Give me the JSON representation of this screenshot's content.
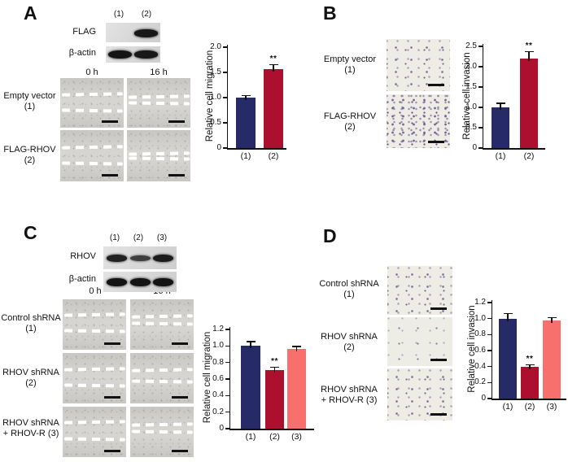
{
  "figure": {
    "panels": [
      {
        "id": "A",
        "letter": "A",
        "blot": {
          "lane_labels": [
            "(1)",
            "(2)"
          ],
          "rows": [
            {
              "label": "FLAG",
              "bands": [
                0,
                0.95
              ]
            },
            {
              "label": "β-actin",
              "bands": [
                1,
                0.95
              ]
            }
          ]
        },
        "wound": {
          "timepoints": [
            "0 h",
            "16 h"
          ],
          "rows": [
            {
              "line1": "Empty vector",
              "line2": "(1)"
            },
            {
              "line1": "FLAG-RHOV",
              "line2": "(2)"
            }
          ]
        }
      },
      {
        "id": "B",
        "letter": "B",
        "invasion": {
          "rows": [
            {
              "line1": "Empty vector",
              "line2": "(1)",
              "density": "medium"
            },
            {
              "line1": "FLAG-RHOV",
              "line2": "(2)",
              "density": "high"
            }
          ]
        }
      },
      {
        "id": "C",
        "letter": "C",
        "blot": {
          "lane_labels": [
            "(1)",
            "(2)",
            "(3)"
          ],
          "rows": [
            {
              "label": "RHOV",
              "bands": [
                0.85,
                0.5,
                0.9
              ]
            },
            {
              "label": "β-actin",
              "bands": [
                1,
                1,
                1
              ]
            }
          ]
        },
        "wound": {
          "timepoints": [
            "0 h",
            "16 h"
          ],
          "rows": [
            {
              "line1": "Control shRNA",
              "line2": "(1)"
            },
            {
              "line1": "RHOV shRNA",
              "line2": "(2)"
            },
            {
              "line1": "RHOV shRNA",
              "line2": "+ RHOV-R (3)"
            }
          ]
        }
      },
      {
        "id": "D",
        "letter": "D",
        "invasion": {
          "rows": [
            {
              "line1": "Control shRNA",
              "line2": "(1)",
              "density": "medium"
            },
            {
              "line1": "RHOV shRNA",
              "line2": "(2)",
              "density": "low"
            },
            {
              "line1": "RHOV shRNA",
              "line2": "+ RHOV-R (3)",
              "density": "medium"
            }
          ]
        }
      }
    ]
  },
  "chart_data": [
    {
      "panel": "A",
      "type": "bar",
      "ylabel": "Relative cell migration",
      "categories": [
        "(1)",
        "(2)"
      ],
      "values": [
        1.0,
        1.57
      ],
      "errors": [
        0.04,
        0.08
      ],
      "sig": [
        "",
        "**"
      ],
      "ylim": [
        0,
        2.0
      ],
      "yticks": [
        "0",
        "0.5",
        "1.0",
        "1.5",
        "2.0"
      ],
      "colors": [
        "#262a66",
        "#ad0f2e"
      ]
    },
    {
      "panel": "B",
      "type": "bar",
      "ylabel": "Relative cell invasion",
      "categories": [
        "(1)",
        "(2)"
      ],
      "values": [
        1.0,
        2.2
      ],
      "errors": [
        0.1,
        0.17
      ],
      "sig": [
        "",
        "**"
      ],
      "ylim": [
        0,
        2.5
      ],
      "yticks": [
        "0",
        "0.5",
        "1.0",
        "1.5",
        "2.0",
        "2.5"
      ],
      "colors": [
        "#262a66",
        "#ad0f2e"
      ]
    },
    {
      "panel": "C",
      "type": "bar",
      "ylabel": "Relative cell migration",
      "categories": [
        "(1)",
        "(2)",
        "(3)"
      ],
      "values": [
        1.0,
        0.71,
        0.96
      ],
      "errors": [
        0.05,
        0.03,
        0.03
      ],
      "sig": [
        "",
        "**",
        ""
      ],
      "ylim": [
        0,
        1.2
      ],
      "yticks": [
        "0",
        "0.2",
        "0.4",
        "0.6",
        "0.8",
        "1.0",
        "1.2"
      ],
      "colors": [
        "#262a66",
        "#ad0f2e",
        "#f8706d"
      ]
    },
    {
      "panel": "D",
      "type": "bar",
      "ylabel": "Relative cell invasion",
      "categories": [
        "(1)",
        "(2)",
        "(3)"
      ],
      "values": [
        1.0,
        0.4,
        0.98
      ],
      "errors": [
        0.06,
        0.02,
        0.03
      ],
      "sig": [
        "",
        "**",
        ""
      ],
      "ylim": [
        0,
        1.2
      ],
      "yticks": [
        "0",
        "0.2",
        "0.4",
        "0.6",
        "0.8",
        "1.0",
        "1.2"
      ],
      "colors": [
        "#262a66",
        "#ad0f2e",
        "#f8706d"
      ]
    }
  ]
}
